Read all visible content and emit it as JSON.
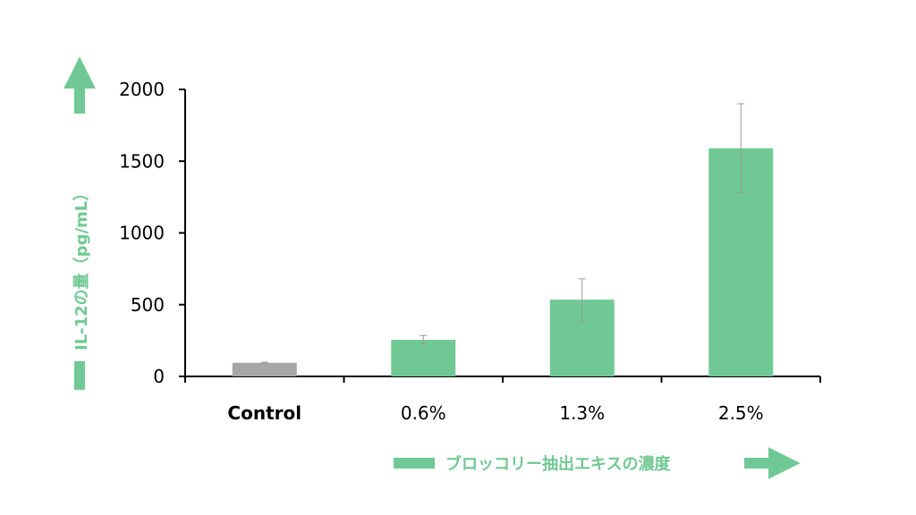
{
  "chart_data": {
    "type": "bar",
    "title": "",
    "categories": [
      "Control",
      "0.6%",
      "1.3%",
      "2.5%"
    ],
    "values": [
      95,
      255,
      535,
      1590
    ],
    "errors": [
      5,
      30,
      145,
      310
    ],
    "bar_colors": [
      "#a6a6a6",
      "#70c994",
      "#70c994",
      "#70c994"
    ],
    "ylabel": "IL-12の量（pg/mL）",
    "xlabel": "ブロッコリー抽出エキスの濃度",
    "ylim": [
      0,
      2000
    ],
    "yticks": [
      0,
      500,
      1000,
      1500,
      2000
    ],
    "grid": false,
    "legend": "none",
    "label_color": "#70c994",
    "bold_categories": [
      "Control"
    ]
  }
}
